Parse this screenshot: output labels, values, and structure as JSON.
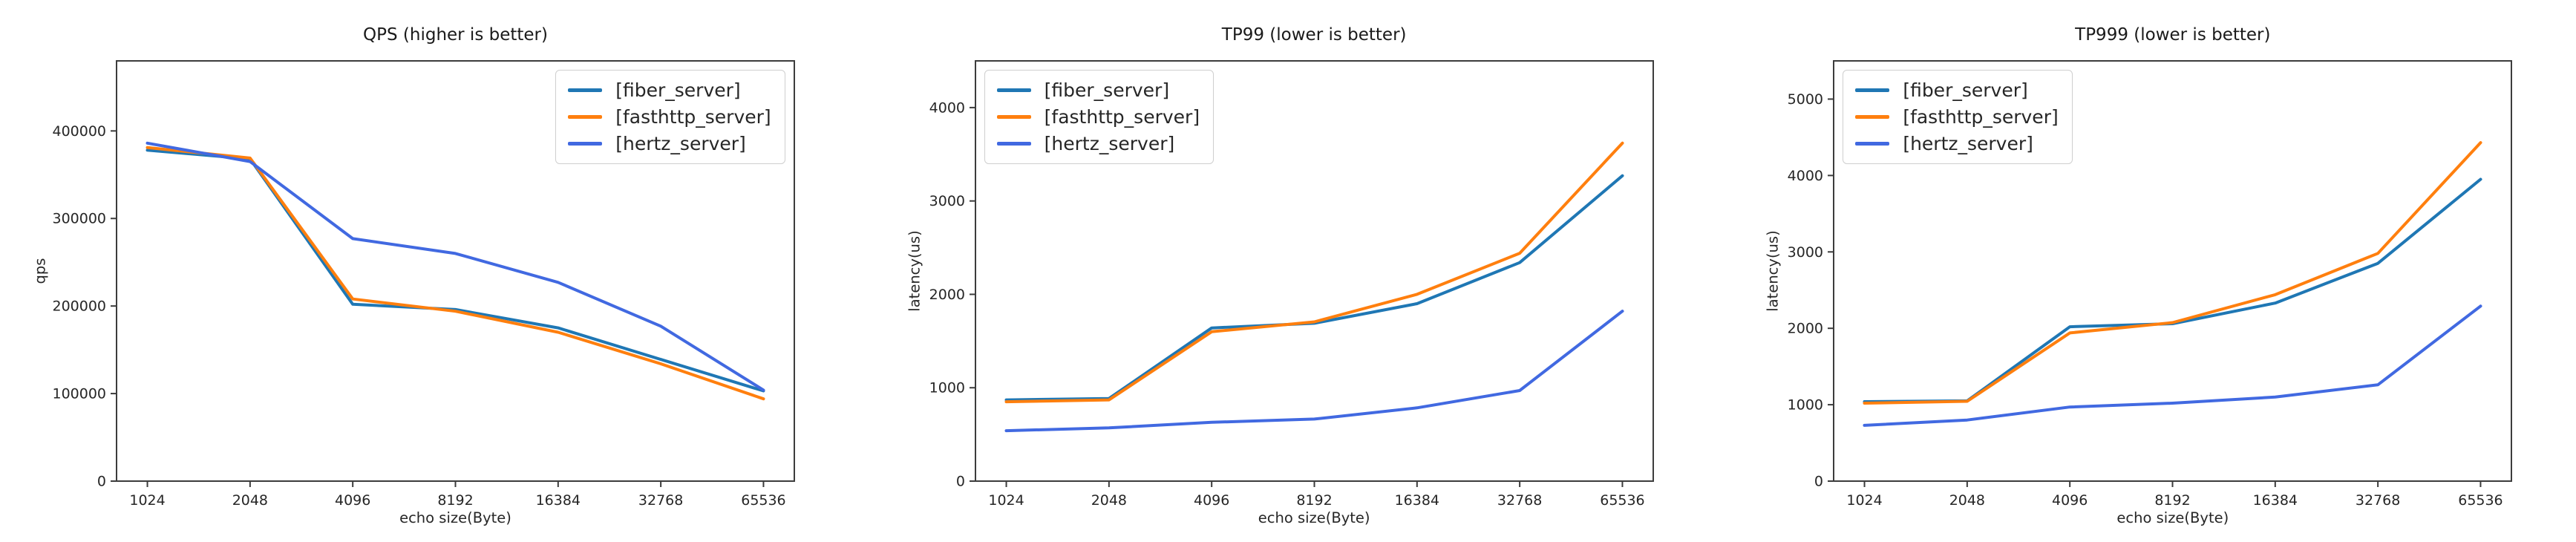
{
  "page": {
    "background": "#ffffff",
    "axis_color": "#3c3c3c",
    "tick_label_color": "#262626"
  },
  "chart_data": [
    {
      "type": "line",
      "title": "QPS (higher is better)",
      "xlabel": "echo size(Byte)",
      "ylabel": "qps",
      "x_ticks": [
        "1024",
        "2048",
        "4096",
        "8192",
        "16384",
        "32768",
        "65536"
      ],
      "y_ticks": [
        0,
        100000,
        200000,
        300000,
        400000
      ],
      "ylim": [
        0,
        480000
      ],
      "grid": false,
      "legend_position": "upper-right",
      "series": [
        {
          "name": "[fiber_server]",
          "color": "#1f77b4",
          "values": [
            378000,
            368000,
            202000,
            196000,
            175000,
            139000,
            103000
          ]
        },
        {
          "name": "[fasthttp_server]",
          "color": "#ff7f0e",
          "values": [
            381000,
            369000,
            208000,
            194000,
            170000,
            134000,
            94000
          ]
        },
        {
          "name": "[hertz_server]",
          "color": "#4169e1",
          "values": [
            386000,
            365000,
            277000,
            260000,
            227000,
            177000,
            104000
          ]
        }
      ]
    },
    {
      "type": "line",
      "title": "TP99 (lower is better)",
      "xlabel": "echo size(Byte)",
      "ylabel": "latency(us)",
      "x_ticks": [
        "1024",
        "2048",
        "4096",
        "8192",
        "16384",
        "32768",
        "65536"
      ],
      "y_ticks": [
        0,
        1000,
        2000,
        3000,
        4000
      ],
      "ylim": [
        0,
        4500
      ],
      "grid": false,
      "legend_position": "upper-left",
      "series": [
        {
          "name": "[fiber_server]",
          "color": "#1f77b4",
          "values": [
            870,
            885,
            1640,
            1690,
            1900,
            2340,
            3270
          ]
        },
        {
          "name": "[fasthttp_server]",
          "color": "#ff7f0e",
          "values": [
            850,
            870,
            1600,
            1705,
            2000,
            2440,
            3620
          ]
        },
        {
          "name": "[hertz_server]",
          "color": "#4169e1",
          "values": [
            540,
            570,
            630,
            665,
            785,
            970,
            1820
          ]
        }
      ]
    },
    {
      "type": "line",
      "title": "TP999 (lower is better)",
      "xlabel": "echo size(Byte)",
      "ylabel": "latency(us)",
      "x_ticks": [
        "1024",
        "2048",
        "4096",
        "8192",
        "16384",
        "32768",
        "65536"
      ],
      "y_ticks": [
        0,
        1000,
        2000,
        3000,
        4000,
        5000
      ],
      "ylim": [
        0,
        5500
      ],
      "grid": false,
      "legend_position": "upper-left",
      "series": [
        {
          "name": "[fiber_server]",
          "color": "#1f77b4",
          "values": [
            1040,
            1050,
            2020,
            2060,
            2330,
            2850,
            3950
          ]
        },
        {
          "name": "[fasthttp_server]",
          "color": "#ff7f0e",
          "values": [
            1020,
            1045,
            1940,
            2075,
            2440,
            2980,
            4430
          ]
        },
        {
          "name": "[hertz_server]",
          "color": "#4169e1",
          "values": [
            730,
            800,
            970,
            1020,
            1100,
            1260,
            2290
          ]
        }
      ]
    }
  ]
}
